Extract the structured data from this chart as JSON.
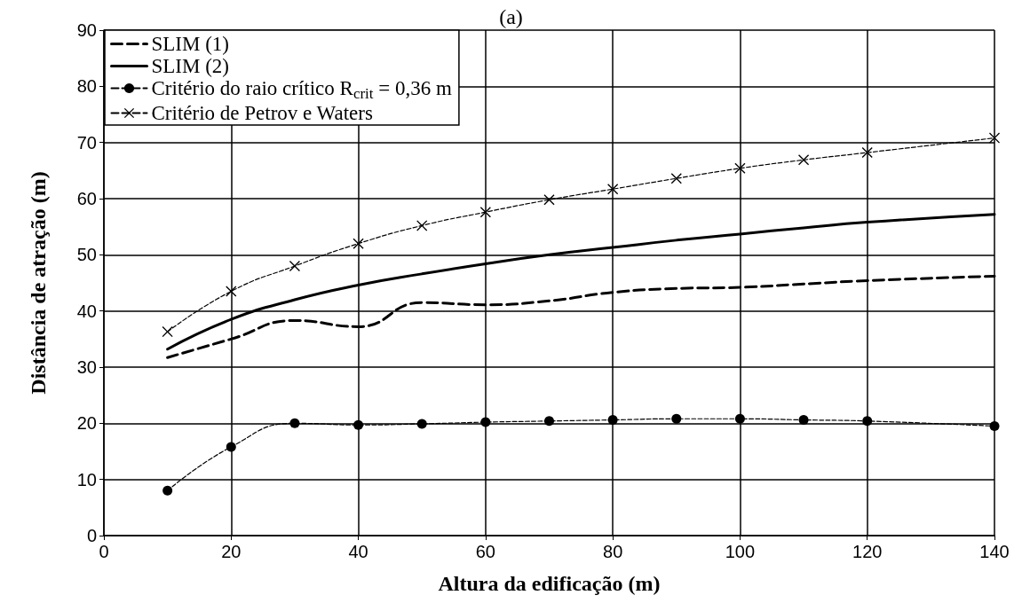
{
  "chart_data": {
    "type": "line",
    "title": "(a)",
    "xlabel": "Altura da edificação (m)",
    "ylabel": "Distância de atração (m)",
    "x": [
      10,
      20,
      30,
      40,
      50,
      60,
      70,
      80,
      90,
      100,
      110,
      120,
      140
    ],
    "xlim": [
      0,
      140
    ],
    "xticks": [
      0,
      20,
      40,
      60,
      80,
      100,
      120,
      140
    ],
    "ylim": [
      0,
      90
    ],
    "yticks": [
      0,
      10,
      20,
      30,
      40,
      50,
      60,
      70,
      80,
      90
    ],
    "grid": true,
    "legend": "top left",
    "series": [
      {
        "name": "SLIM (1)",
        "color": "#000000",
        "line_style": "dashed",
        "marker": "none",
        "values": [
          31.7,
          35,
          38.3,
          37.2,
          41.5,
          41.1,
          41.8,
          43.3,
          44,
          44.2,
          44.8,
          45.4,
          46.2
        ]
      },
      {
        "name": "SLIM (2)",
        "color": "#000000",
        "line_style": "solid",
        "marker": "none",
        "values": [
          33.2,
          38.5,
          42,
          44.6,
          46.6,
          48.4,
          50,
          51.3,
          52.6,
          53.7,
          54.8,
          55.8,
          57.2
        ]
      },
      {
        "name": "Critério do raio crítico R$_{crit}$ = 0,36 m",
        "color": "#000000",
        "line_style": "dashed",
        "marker": "circle",
        "values": [
          8,
          15.8,
          20,
          19.7,
          19.9,
          20.2,
          20.4,
          20.6,
          20.8,
          20.8,
          20.6,
          20.4,
          19.5
        ]
      },
      {
        "name": "Critério de Petrov e Waters",
        "color": "#000000",
        "line_style": "dashed",
        "marker": "cross",
        "values": [
          36.3,
          43.5,
          48,
          52,
          55.2,
          57.6,
          59.8,
          61.7,
          63.6,
          65.4,
          66.9,
          68.2,
          70.8
        ]
      }
    ]
  }
}
